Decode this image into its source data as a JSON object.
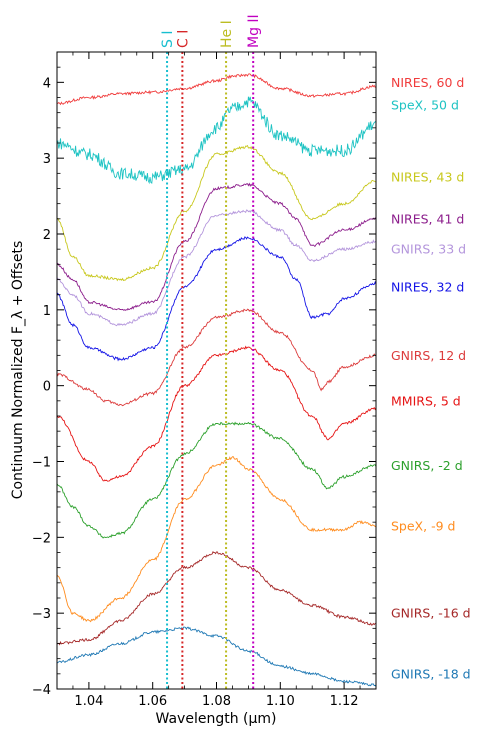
{
  "chart_data": {
    "type": "line",
    "title": "",
    "xlabel": "Wavelength (μm)",
    "ylabel": "Continuum Normalized F_λ + Offsets",
    "xlim": [
      1.03,
      1.13
    ],
    "ylim": [
      -4,
      4.4
    ],
    "x_ticks": [
      1.04,
      1.06,
      1.08,
      1.1,
      1.12
    ],
    "x_tick_labels": [
      "1.04",
      "1.06",
      "1.08",
      "1.10",
      "1.12"
    ],
    "y_ticks": [
      -4,
      -3,
      -2,
      -1,
      0,
      1,
      2,
      3,
      4
    ],
    "y_tick_labels": [
      "−4",
      "−3",
      "−2",
      "−1",
      "0",
      "1",
      "2",
      "3",
      "4"
    ],
    "grid": false,
    "legend": "labels at right end of each spectrum",
    "lines": [
      {
        "label": "S I",
        "x": 1.0645,
        "color": "#17becf"
      },
      {
        "label": "C I",
        "x": 1.0693,
        "color": "#d62728"
      },
      {
        "label": "He I",
        "x": 1.083,
        "color": "#bcbd22"
      },
      {
        "label": "Mg II",
        "x": 1.0915,
        "color": "#c000c0"
      }
    ],
    "series": [
      {
        "name": "NIRES, 60 d",
        "color": "#f03c3c",
        "label_y": 4.0,
        "x": [
          1.03,
          1.04,
          1.05,
          1.06,
          1.07,
          1.08,
          1.085,
          1.09,
          1.1,
          1.11,
          1.12,
          1.13
        ],
        "y": [
          3.72,
          3.8,
          3.85,
          3.87,
          3.92,
          4.02,
          4.08,
          4.1,
          3.92,
          3.82,
          3.85,
          3.95
        ]
      },
      {
        "name": "SpeX, 50 d",
        "color": "#1ec3c3",
        "label_y": 3.7,
        "x": [
          1.03,
          1.04,
          1.05,
          1.06,
          1.07,
          1.08,
          1.085,
          1.09,
          1.1,
          1.11,
          1.12,
          1.13
        ],
        "y": [
          3.2,
          3.05,
          2.8,
          2.75,
          2.85,
          3.4,
          3.65,
          3.75,
          3.3,
          3.1,
          3.1,
          3.45
        ]
      },
      {
        "name": "NIRES, 43 d",
        "color": "#c8c81e",
        "label_y": 2.75,
        "x": [
          1.03,
          1.035,
          1.04,
          1.05,
          1.06,
          1.07,
          1.08,
          1.09,
          1.1,
          1.11,
          1.12,
          1.13
        ],
        "y": [
          2.2,
          1.7,
          1.45,
          1.4,
          1.55,
          2.3,
          3.05,
          3.15,
          2.8,
          2.2,
          2.4,
          2.7
        ]
      },
      {
        "name": "NIRES, 41 d",
        "color": "#8c1e8c",
        "label_y": 2.2,
        "x": [
          1.03,
          1.035,
          1.04,
          1.05,
          1.06,
          1.07,
          1.08,
          1.09,
          1.1,
          1.105,
          1.11,
          1.12,
          1.13
        ],
        "y": [
          1.6,
          1.4,
          1.1,
          1.0,
          1.1,
          1.9,
          2.6,
          2.65,
          2.4,
          2.2,
          1.85,
          2.05,
          2.2
        ]
      },
      {
        "name": "GNIRS, 33 d",
        "color": "#b496dc",
        "label_y": 1.8,
        "x": [
          1.03,
          1.035,
          1.04,
          1.05,
          1.06,
          1.07,
          1.08,
          1.09,
          1.1,
          1.105,
          1.11,
          1.12,
          1.13
        ],
        "y": [
          1.4,
          1.2,
          0.95,
          0.8,
          0.95,
          1.7,
          2.25,
          2.3,
          2.05,
          1.85,
          1.65,
          1.8,
          1.9
        ]
      },
      {
        "name": "NIRES, 32 d",
        "color": "#1414e6",
        "label_y": 1.3,
        "x": [
          1.03,
          1.035,
          1.04,
          1.05,
          1.06,
          1.07,
          1.08,
          1.09,
          1.1,
          1.105,
          1.11,
          1.115,
          1.12,
          1.13
        ],
        "y": [
          1.2,
          0.8,
          0.5,
          0.35,
          0.5,
          1.3,
          1.8,
          1.95,
          1.7,
          1.4,
          0.9,
          0.95,
          1.15,
          1.35
        ]
      },
      {
        "name": "GNIRS, 12 d",
        "color": "#dc3c3c",
        "label_y": 0.4,
        "x": [
          1.03,
          1.04,
          1.045,
          1.05,
          1.06,
          1.07,
          1.08,
          1.09,
          1.1,
          1.11,
          1.113,
          1.115,
          1.12,
          1.13
        ],
        "y": [
          0.15,
          -0.05,
          -0.2,
          -0.25,
          -0.1,
          0.5,
          0.9,
          1.0,
          0.7,
          0.2,
          -0.05,
          0.05,
          0.25,
          0.4
        ]
      },
      {
        "name": "MMIRS, 5 d",
        "color": "#e61414",
        "label_y": -0.2,
        "x": [
          1.03,
          1.04,
          1.045,
          1.05,
          1.06,
          1.07,
          1.08,
          1.09,
          1.1,
          1.11,
          1.115,
          1.12,
          1.13
        ],
        "y": [
          -0.4,
          -1.0,
          -1.25,
          -1.2,
          -0.8,
          0.0,
          0.4,
          0.5,
          0.2,
          -0.4,
          -0.7,
          -0.5,
          -0.3
        ]
      },
      {
        "name": "GNIRS, -2 d",
        "color": "#2ca02c",
        "label_y": -1.05,
        "x": [
          1.03,
          1.035,
          1.04,
          1.045,
          1.05,
          1.06,
          1.07,
          1.08,
          1.09,
          1.1,
          1.11,
          1.115,
          1.12,
          1.13
        ],
        "y": [
          -1.3,
          -1.6,
          -1.85,
          -2.0,
          -1.95,
          -1.5,
          -0.9,
          -0.5,
          -0.5,
          -0.7,
          -1.1,
          -1.35,
          -1.2,
          -1.05
        ]
      },
      {
        "name": "SpeX, -9 d",
        "color": "#ff8c1e",
        "label_y": -1.85,
        "x": [
          1.03,
          1.035,
          1.04,
          1.05,
          1.06,
          1.07,
          1.08,
          1.085,
          1.09,
          1.1,
          1.11,
          1.12,
          1.125,
          1.13
        ],
        "y": [
          -2.5,
          -3.0,
          -3.1,
          -2.8,
          -2.3,
          -1.5,
          -1.05,
          -0.95,
          -1.1,
          -1.5,
          -1.9,
          -1.9,
          -1.8,
          -1.85
        ]
      },
      {
        "name": "GNIRS, -16 d",
        "color": "#a52828",
        "label_y": -3.0,
        "x": [
          1.03,
          1.04,
          1.05,
          1.06,
          1.07,
          1.08,
          1.09,
          1.1,
          1.11,
          1.12,
          1.13
        ],
        "y": [
          -3.4,
          -3.35,
          -3.1,
          -2.75,
          -2.4,
          -2.2,
          -2.4,
          -2.7,
          -2.9,
          -3.05,
          -3.15
        ]
      },
      {
        "name": "GNIRS, -18 d",
        "color": "#1e78b4",
        "label_y": -3.8,
        "x": [
          1.03,
          1.04,
          1.05,
          1.06,
          1.07,
          1.08,
          1.09,
          1.1,
          1.11,
          1.12,
          1.13
        ],
        "y": [
          -3.65,
          -3.55,
          -3.4,
          -3.25,
          -3.2,
          -3.3,
          -3.5,
          -3.7,
          -3.8,
          -3.9,
          -3.95
        ]
      }
    ]
  }
}
